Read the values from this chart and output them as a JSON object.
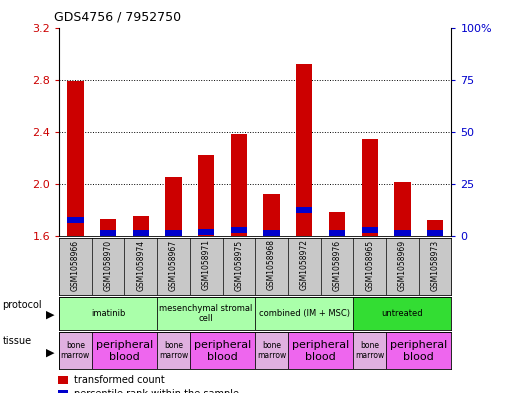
{
  "title": "GDS4756 / 7952750",
  "samples": [
    "GSM1058966",
    "GSM1058970",
    "GSM1058974",
    "GSM1058967",
    "GSM1058971",
    "GSM1058975",
    "GSM1058968",
    "GSM1058972",
    "GSM1058976",
    "GSM1058965",
    "GSM1058969",
    "GSM1058973"
  ],
  "red_values": [
    2.79,
    1.73,
    1.75,
    2.05,
    2.22,
    2.38,
    1.92,
    2.92,
    1.78,
    2.34,
    2.01,
    1.72
  ],
  "blue_values_pct": [
    10,
    2,
    2,
    5,
    5,
    6,
    2,
    15,
    2,
    6,
    2,
    2
  ],
  "ymin": 1.6,
  "ymax": 3.2,
  "yticks": [
    1.6,
    2.0,
    2.4,
    2.8,
    3.2
  ],
  "right_yticks": [
    0,
    25,
    50,
    75,
    100
  ],
  "protocols": [
    {
      "label": "imatinib",
      "start": 0,
      "end": 3,
      "color": "#aaffaa"
    },
    {
      "label": "mesenchymal stromal\ncell",
      "start": 3,
      "end": 6,
      "color": "#aaffaa"
    },
    {
      "label": "combined (IM + MSC)",
      "start": 6,
      "end": 9,
      "color": "#aaffaa"
    },
    {
      "label": "untreated",
      "start": 9,
      "end": 12,
      "color": "#33dd33"
    }
  ],
  "tissues": [
    {
      "label": "bone\nmarrow",
      "start": 0,
      "end": 1
    },
    {
      "label": "peripheral\nblood",
      "start": 1,
      "end": 3
    },
    {
      "label": "bone\nmarrow",
      "start": 3,
      "end": 4
    },
    {
      "label": "peripheral\nblood",
      "start": 4,
      "end": 6
    },
    {
      "label": "bone\nmarrow",
      "start": 6,
      "end": 7
    },
    {
      "label": "peripheral\nblood",
      "start": 7,
      "end": 9
    },
    {
      "label": "bone\nmarrow",
      "start": 9,
      "end": 10
    },
    {
      "label": "peripheral\nblood",
      "start": 10,
      "end": 12
    }
  ],
  "bar_color_red": "#cc0000",
  "bar_color_blue": "#0000cc",
  "left_tick_color": "#cc0000",
  "right_tick_color": "#0000cc",
  "sample_box_color": "#c8c8c8",
  "bone_color": "#e0b0e0",
  "blood_color": "#ee66ee"
}
